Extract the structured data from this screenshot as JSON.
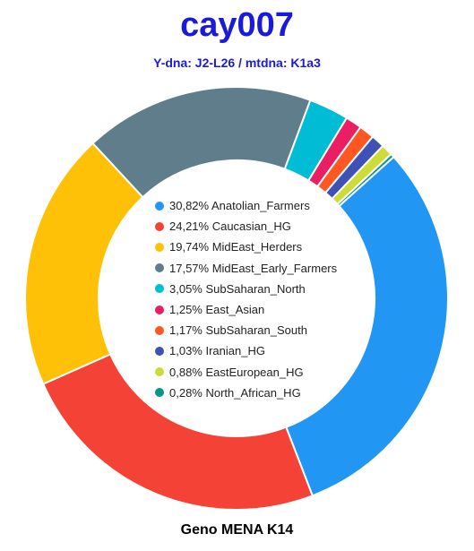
{
  "header": {
    "title": "cay007",
    "subtitle": "Y-dna: J2-L26 / mtdna: K1a3"
  },
  "footer": {
    "caption": "Geno MENA K14"
  },
  "chart_data": {
    "type": "pie",
    "donut": true,
    "title": "cay007",
    "subtitle": "Y-dna: J2-L26 / mtdna: K1a3",
    "legend_position": "center",
    "slices": [
      {
        "label": "30,82% Anatolian_Farmers",
        "name": "Anatolian_Farmers",
        "value": 30.82,
        "color": "#2196f3"
      },
      {
        "label": "24,21% Caucasian_HG",
        "name": "Caucasian_HG",
        "value": 24.21,
        "color": "#f44336"
      },
      {
        "label": "19,74% MidEast_Herders",
        "name": "MidEast_Herders",
        "value": 19.74,
        "color": "#ffc107"
      },
      {
        "label": "17,57% MidEast_Early_Farmers",
        "name": "MidEast_Early_Farmers",
        "value": 17.57,
        "color": "#607d8b"
      },
      {
        "label": "3,05% SubSaharan_North",
        "name": "SubSaharan_North",
        "value": 3.05,
        "color": "#00bcd4"
      },
      {
        "label": "1,25% East_Asian",
        "name": "East_Asian",
        "value": 1.25,
        "color": "#e91e63"
      },
      {
        "label": "1,17% SubSaharan_South",
        "name": "SubSaharan_South",
        "value": 1.17,
        "color": "#ff5722"
      },
      {
        "label": "1,03% Iranian_HG",
        "name": "Iranian_HG",
        "value": 1.03,
        "color": "#3f51b5"
      },
      {
        "label": "0,88% EastEuropean_HG",
        "name": "EastEuropean_HG",
        "value": 0.88,
        "color": "#cddc39"
      },
      {
        "label": "0,28% North_African_HG",
        "name": "North_African_HG",
        "value": 0.28,
        "color": "#009688"
      }
    ]
  }
}
